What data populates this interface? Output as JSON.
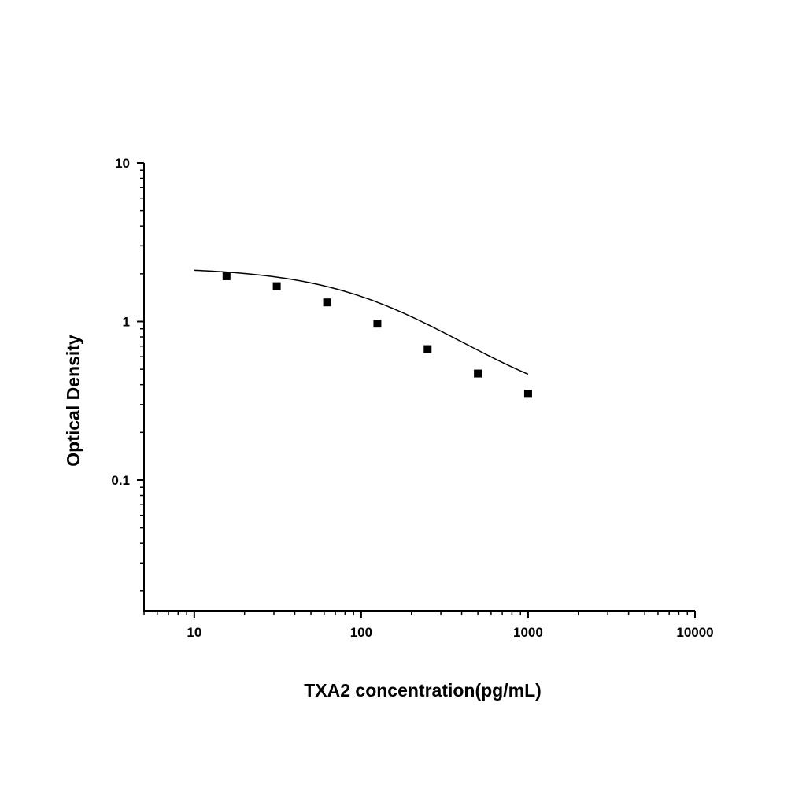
{
  "chart_data": {
    "type": "scatter",
    "title": "",
    "xlabel": "TXA2 concentration(pg/mL)",
    "ylabel": "Optical Density",
    "xscale": "log",
    "yscale": "log",
    "xlim": [
      5,
      10000
    ],
    "ylim": [
      0.015,
      10
    ],
    "x_ticks": [
      {
        "value": 10,
        "label": "10"
      },
      {
        "value": 100,
        "label": "100"
      },
      {
        "value": 1000,
        "label": "1000"
      },
      {
        "value": 10000,
        "label": "10000"
      }
    ],
    "y_ticks": [
      {
        "value": 10,
        "label": "10"
      },
      {
        "value": 1,
        "label": "1"
      },
      {
        "value": 0.1,
        "label": "0.1"
      }
    ],
    "grid": false,
    "legend": "none",
    "series": [
      {
        "marker": "square",
        "color": "#000000",
        "x": [
          15.6,
          31.2,
          62.5,
          125,
          250,
          500,
          1000
        ],
        "y": [
          1.93,
          1.67,
          1.32,
          0.97,
          0.67,
          0.47,
          0.35
        ]
      }
    ],
    "fit_curve": {
      "type": "four-parameter logistic",
      "color": "#000000",
      "x_range": [
        10,
        1000
      ],
      "params": {
        "top": 2.2,
        "bottom": 0.25,
        "ec50": 150,
        "hill": 1.1
      }
    }
  }
}
